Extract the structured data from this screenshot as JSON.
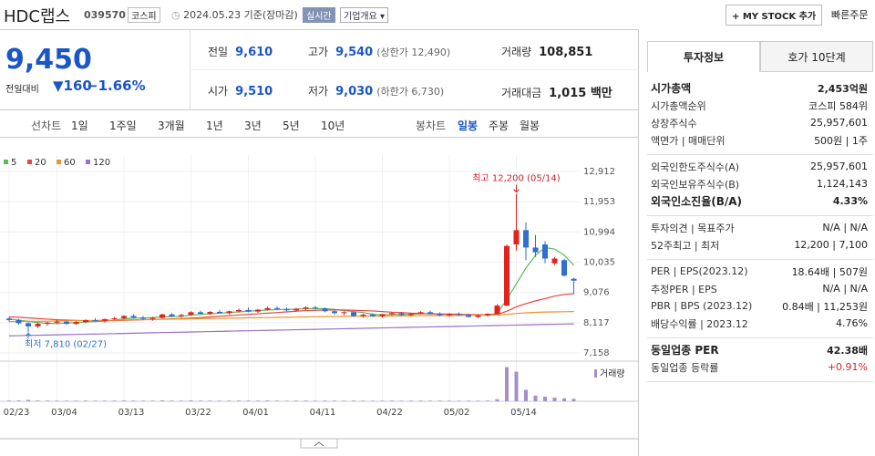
{
  "header": {
    "name": "HDC랩스",
    "code": "039570",
    "market": "코스피",
    "date": "2024.05.23 기준(장마감)",
    "realtime": "실시간",
    "company": "기업개요 ▾",
    "mystock": "+ MY STOCK 추가",
    "quick_order": "빠른주문"
  },
  "quote": {
    "price": "9,450",
    "change_label": "전일대비",
    "change": "▼160",
    "change_rate": "−1.66%",
    "items": [
      {
        "label": "전일",
        "value": "9,610"
      },
      {
        "label": "고가",
        "value": "9,540",
        "note": "(상한가 12,490)"
      },
      {
        "label": "거래량",
        "value": "108,851"
      },
      {
        "label": "시가",
        "value": "9,510"
      },
      {
        "label": "저가",
        "value": "9,030",
        "note": "(하한가 6,730)"
      },
      {
        "label": "거래대금",
        "value": "1,015 백만"
      }
    ]
  },
  "periods": {
    "line_label": "선차트",
    "line": [
      "1일",
      "1주일",
      "3개월",
      "1년",
      "3년",
      "5년",
      "10년"
    ],
    "candle_label": "봉차트",
    "candle": [
      "일봉",
      "주봉",
      "월봉"
    ],
    "active_candle": 0
  },
  "chart_data": {
    "type": "candlestick",
    "categories": [
      "02/23",
      null,
      null,
      null,
      null,
      "03/04",
      null,
      null,
      null,
      null,
      null,
      null,
      "03/13",
      null,
      null,
      null,
      null,
      null,
      null,
      "03/22",
      null,
      null,
      null,
      null,
      null,
      "04/01",
      null,
      null,
      null,
      null,
      null,
      null,
      "04/11",
      null,
      null,
      null,
      null,
      null,
      null,
      "04/22",
      null,
      null,
      null,
      null,
      null,
      null,
      "05/02",
      null,
      null,
      null,
      null,
      null,
      null,
      "05/14",
      null,
      null,
      null,
      null,
      null,
      null
    ],
    "ohlc": [
      [
        8250,
        8300,
        8150,
        8200
      ],
      [
        8200,
        8230,
        8050,
        8100
      ],
      [
        8100,
        8150,
        7810,
        8000
      ],
      [
        8000,
        8120,
        7950,
        8080
      ],
      [
        8080,
        8150,
        8020,
        8120
      ],
      [
        8120,
        8200,
        8080,
        8150
      ],
      [
        8150,
        8180,
        8050,
        8080
      ],
      [
        8080,
        8160,
        8050,
        8140
      ],
      [
        8140,
        8220,
        8100,
        8200
      ],
      [
        8200,
        8260,
        8150,
        8180
      ],
      [
        8180,
        8250,
        8120,
        8230
      ],
      [
        8230,
        8300,
        8200,
        8260
      ],
      [
        8260,
        8350,
        8220,
        8330
      ],
      [
        8330,
        8380,
        8250,
        8280
      ],
      [
        8280,
        8330,
        8200,
        8240
      ],
      [
        8240,
        8300,
        8180,
        8270
      ],
      [
        8270,
        8400,
        8250,
        8380
      ],
      [
        8380,
        8420,
        8300,
        8320
      ],
      [
        8320,
        8400,
        8280,
        8360
      ],
      [
        8360,
        8480,
        8340,
        8450
      ],
      [
        8450,
        8500,
        8380,
        8400
      ],
      [
        8400,
        8480,
        8360,
        8460
      ],
      [
        8460,
        8520,
        8400,
        8420
      ],
      [
        8420,
        8500,
        8380,
        8480
      ],
      [
        8480,
        8560,
        8440,
        8520
      ],
      [
        8520,
        8600,
        8450,
        8470
      ],
      [
        8470,
        8550,
        8430,
        8530
      ],
      [
        8530,
        8620,
        8500,
        8580
      ],
      [
        8580,
        8640,
        8520,
        8550
      ],
      [
        8550,
        8600,
        8480,
        8510
      ],
      [
        8510,
        8580,
        8470,
        8560
      ],
      [
        8560,
        8640,
        8520,
        8600
      ],
      [
        8600,
        8650,
        8540,
        8570
      ],
      [
        8570,
        8600,
        8450,
        8480
      ],
      [
        8480,
        8520,
        8380,
        8420
      ],
      [
        8420,
        8480,
        8350,
        8450
      ],
      [
        8450,
        8470,
        8300,
        8330
      ],
      [
        8330,
        8400,
        8280,
        8370
      ],
      [
        8370,
        8420,
        8300,
        8320
      ],
      [
        8320,
        8400,
        8280,
        8380
      ],
      [
        8380,
        8450,
        8350,
        8420
      ],
      [
        8420,
        8460,
        8330,
        8360
      ],
      [
        8360,
        8430,
        8320,
        8400
      ],
      [
        8400,
        8480,
        8380,
        8450
      ],
      [
        8450,
        8500,
        8380,
        8400
      ],
      [
        8400,
        8450,
        8320,
        8350
      ],
      [
        8350,
        8420,
        8300,
        8390
      ],
      [
        8390,
        8440,
        8330,
        8360
      ],
      [
        8360,
        8400,
        8280,
        8300
      ],
      [
        8300,
        8380,
        8260,
        8350
      ],
      [
        8350,
        8420,
        8320,
        8400
      ],
      [
        8400,
        8700,
        8380,
        8660
      ],
      [
        8660,
        10600,
        8640,
        10550
      ],
      [
        10600,
        12200,
        10400,
        11050
      ],
      [
        11050,
        11300,
        10100,
        10500
      ],
      [
        10500,
        10900,
        10200,
        10350
      ],
      [
        10600,
        10700,
        10000,
        10150
      ],
      [
        10000,
        10200,
        9950,
        10150
      ],
      [
        10100,
        10150,
        9580,
        9610
      ],
      [
        9510,
        9540,
        9030,
        9450
      ]
    ],
    "up_color": "#e0231f",
    "down_color": "#2f6fd0",
    "series": [
      {
        "name": "5",
        "color": "#5cb85c",
        "values": [
          8230,
          8200,
          8160,
          8120,
          8100,
          8090,
          8110,
          8115,
          8140,
          8150,
          8170,
          8200,
          8240,
          8260,
          8270,
          8280,
          8300,
          8310,
          8320,
          8360,
          8380,
          8400,
          8420,
          8440,
          8460,
          8480,
          8500,
          8520,
          8530,
          8540,
          8545,
          8560,
          8570,
          8560,
          8540,
          8500,
          8470,
          8440,
          8380,
          8370,
          8380,
          8380,
          8380,
          8400,
          8400,
          8390,
          8390,
          8390,
          8360,
          8350,
          8360,
          8410,
          8850,
          9350,
          9850,
          10250,
          10500,
          10450,
          10260,
          9940
        ]
      },
      {
        "name": "20",
        "color": "#e84545",
        "values": [
          8300,
          8290,
          8270,
          8250,
          8230,
          8210,
          8200,
          8190,
          8180,
          8180,
          8180,
          8185,
          8190,
          8200,
          8210,
          8220,
          8230,
          8240,
          8250,
          8260,
          8280,
          8300,
          8320,
          8340,
          8360,
          8380,
          8400,
          8420,
          8440,
          8460,
          8480,
          8500,
          8510,
          8520,
          8520,
          8520,
          8510,
          8500,
          8490,
          8470,
          8450,
          8440,
          8420,
          8410,
          8400,
          8390,
          8385,
          8380,
          8375,
          8370,
          8370,
          8380,
          8480,
          8620,
          8720,
          8810,
          8880,
          8960,
          9010,
          9040
        ]
      },
      {
        "name": "60",
        "color": "#f0922b",
        "values": [
          8150,
          8155,
          8160,
          8160,
          8165,
          8170,
          8175,
          8180,
          8185,
          8190,
          8195,
          8200,
          8205,
          8210,
          8215,
          8220,
          8225,
          8230,
          8235,
          8240,
          8245,
          8250,
          8255,
          8260,
          8265,
          8270,
          8275,
          8280,
          8285,
          8290,
          8295,
          8300,
          8305,
          8310,
          8315,
          8318,
          8320,
          8322,
          8325,
          8328,
          8330,
          8332,
          8335,
          8338,
          8340,
          8342,
          8345,
          8348,
          8350,
          8352,
          8355,
          8360,
          8380,
          8410,
          8430,
          8445,
          8455,
          8460,
          8465,
          8470
        ]
      },
      {
        "name": "120",
        "color": "#9b6fc4",
        "values": [
          7700,
          7706,
          7713,
          7719,
          7726,
          7732,
          7739,
          7745,
          7752,
          7758,
          7764,
          7771,
          7777,
          7784,
          7790,
          7797,
          7803,
          7810,
          7816,
          7822,
          7829,
          7835,
          7842,
          7848,
          7855,
          7861,
          7868,
          7874,
          7880,
          7887,
          7893,
          7900,
          7906,
          7913,
          7919,
          7926,
          7932,
          7938,
          7945,
          7951,
          7958,
          7964,
          7971,
          7977,
          7984,
          7990,
          7996,
          8003,
          8009,
          8016,
          8022,
          8029,
          8035,
          8042,
          8048,
          8054,
          8061,
          8067,
          8074,
          8080
        ]
      }
    ],
    "volume": {
      "name": "거래량",
      "color": "#a58fc9",
      "values": [
        30000,
        35000,
        60000,
        32000,
        28000,
        26000,
        25000,
        27000,
        30000,
        24000,
        26000,
        29000,
        33000,
        28000,
        25000,
        27000,
        38000,
        30000,
        26000,
        35000,
        29000,
        27000,
        25000,
        28000,
        31000,
        29000,
        27000,
        33000,
        26000,
        24000,
        27000,
        30000,
        25000,
        29000,
        28000,
        24000,
        30000,
        26000,
        23000,
        25000,
        27000,
        24000,
        25000,
        28000,
        26000,
        25000,
        24000,
        23000,
        26000,
        24000,
        28000,
        90000,
        1500000,
        1300000,
        500000,
        250000,
        200000,
        160000,
        130000,
        108851
      ]
    },
    "vlim": [
      0,
      1600000
    ],
    "ylim": [
      7158,
      12912
    ],
    "yticks": [
      {
        "value": 12912,
        "label": "12,912"
      },
      {
        "value": 11953,
        "label": "11,953"
      },
      {
        "value": 10994,
        "label": "10,994"
      },
      {
        "value": 10035,
        "label": "10,035"
      },
      {
        "value": 9076,
        "label": "9,076"
      },
      {
        "value": 8117,
        "label": "8,117"
      },
      {
        "value": 7158,
        "label": "7,158"
      }
    ],
    "annotations": [
      "최고 12,200 (05/14)",
      "최저 7,810 (02/27)"
    ],
    "grid": true
  },
  "info": {
    "tabs": [
      "투자정보",
      "호가 10단계"
    ],
    "sections": [
      [
        {
          "label": "시가총액",
          "value": "2,453억원",
          "strong": true
        },
        {
          "label": "시가총액순위",
          "value": "코스피 584위"
        },
        {
          "label": "상장주식수",
          "value": "25,957,601"
        },
        {
          "label": "액면가 | 매매단위",
          "value": "500원 | 1주"
        }
      ],
      [
        {
          "label": "외국인한도주식수(A)",
          "value": "25,957,601"
        },
        {
          "label": "외국인보유주식수(B)",
          "value": "1,124,143"
        },
        {
          "label": "외국인소진율(B/A)",
          "value": "4.33%",
          "strong": true
        }
      ],
      [
        {
          "label": "투자의견 | 목표주가",
          "value": "N/A | N/A"
        },
        {
          "label": "52주최고 | 최저",
          "value": "12,200 | 7,100"
        }
      ],
      [
        {
          "label": "PER | EPS(2023.12)",
          "value": "18.64배 | 507원"
        },
        {
          "label": "추정PER | EPS",
          "value": "N/A | N/A"
        },
        {
          "label": "PBR | BPS (2023.12)",
          "value": "0.84배 | 11,253원"
        },
        {
          "label": "배당수익률 | 2023.12",
          "value": "4.76%"
        }
      ],
      [
        {
          "label": "동일업종 PER",
          "value": "42.38배",
          "strong": true
        },
        {
          "label": "동일업종 등락률",
          "value": "+0.91%",
          "color": "#e0231f"
        }
      ]
    ]
  }
}
